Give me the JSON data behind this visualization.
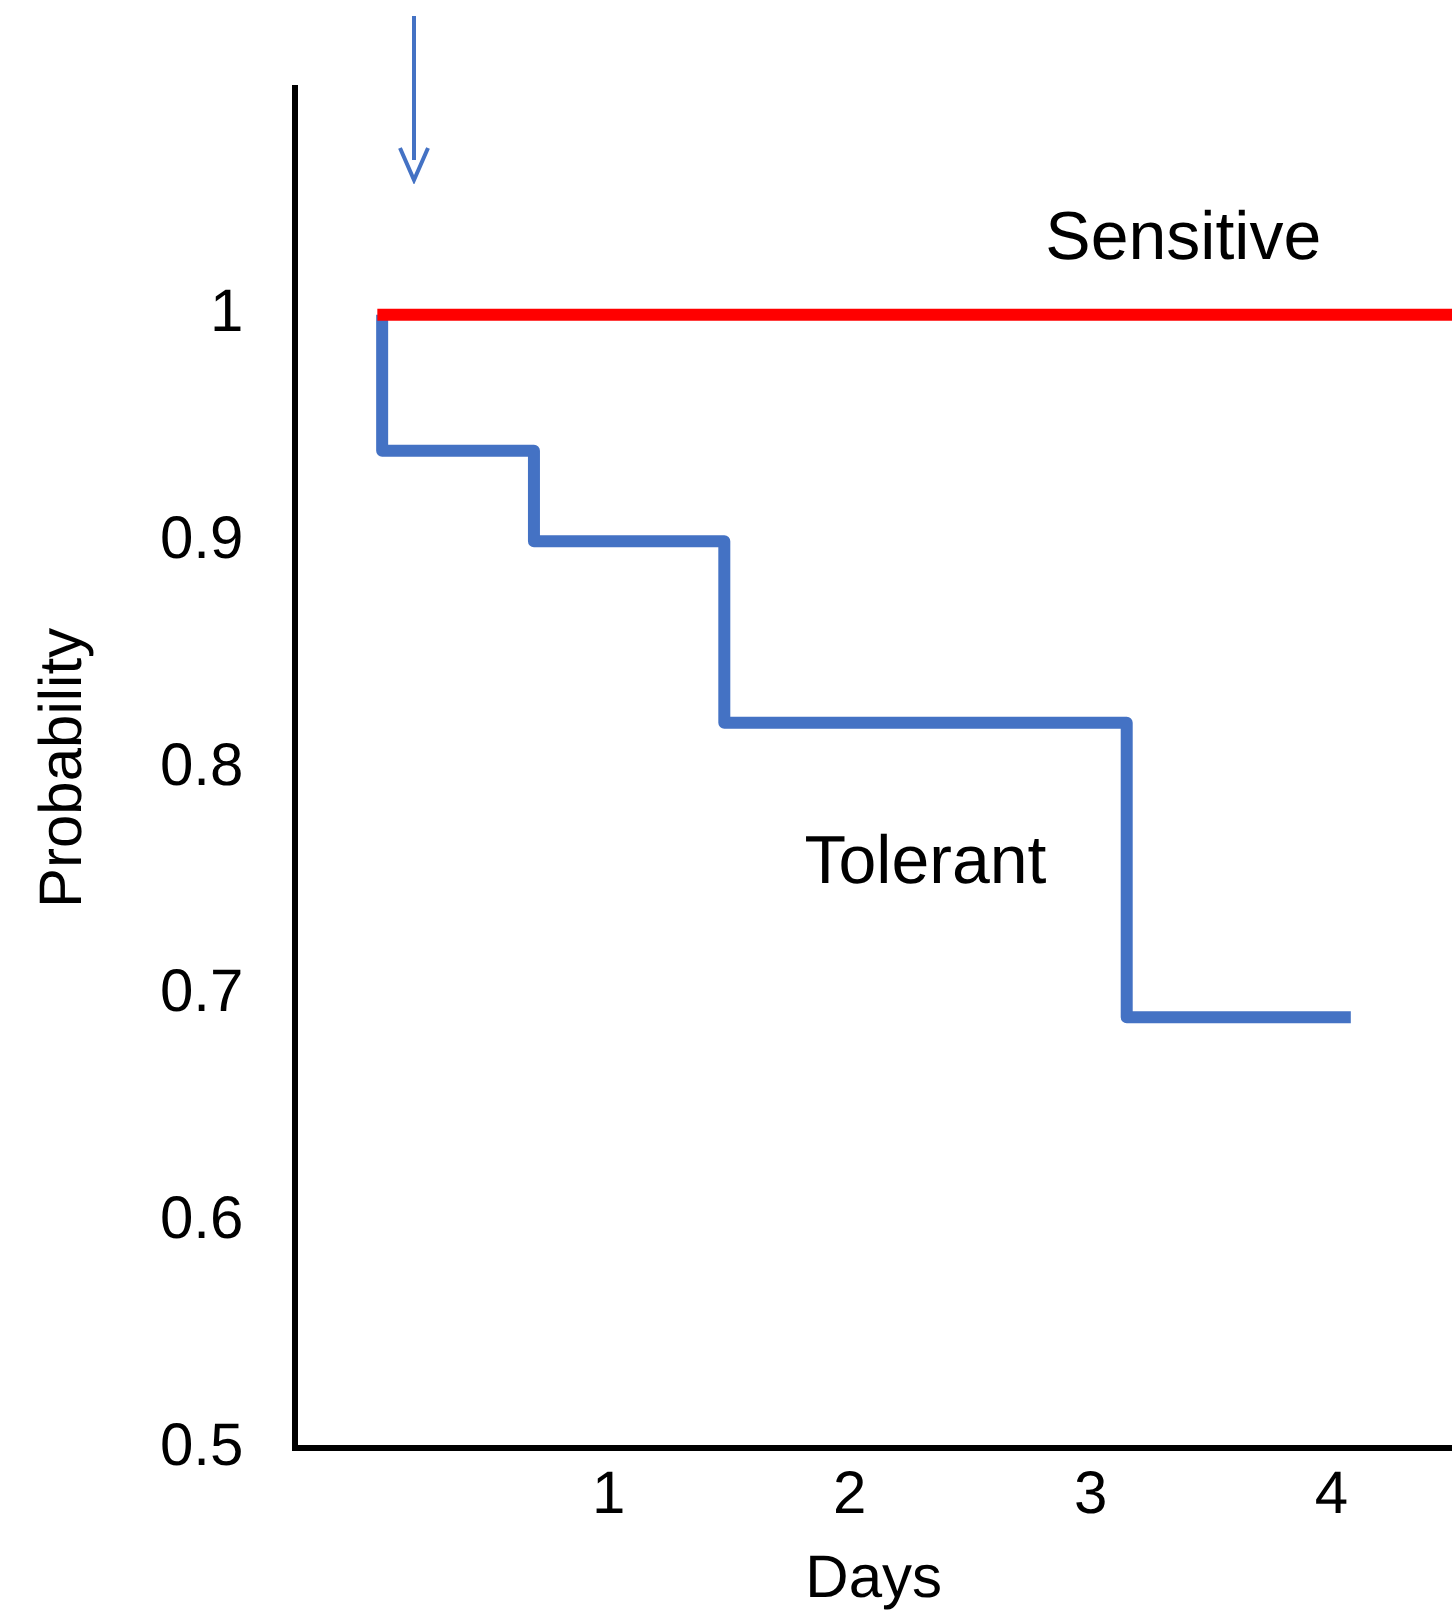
{
  "chart_data": {
    "type": "step",
    "xlabel": "Days",
    "ylabel": "Probability",
    "series": [
      {
        "name": "Sensitive",
        "color": "#ff0000",
        "x": [
          0.04,
          4.5
        ],
        "values": [
          1,
          1
        ]
      },
      {
        "name": "Tolerant",
        "color": "#4472c4",
        "x": [
          0.06,
          0.06,
          0.69,
          1.48,
          3.15,
          4.08
        ],
        "values": [
          1,
          0.94,
          0.9,
          0.82,
          0.69,
          0.69
        ]
      }
    ],
    "xlim": [
      -0.3,
      4.5
    ],
    "xticks": [
      1,
      2,
      3,
      4
    ],
    "ylim": [
      0.5,
      1.1
    ],
    "yticks": [
      0.5,
      0.6,
      0.7,
      0.8,
      0.9,
      1
    ],
    "grid": false,
    "legend": false,
    "marker": "none",
    "line_style": "solid"
  }
}
